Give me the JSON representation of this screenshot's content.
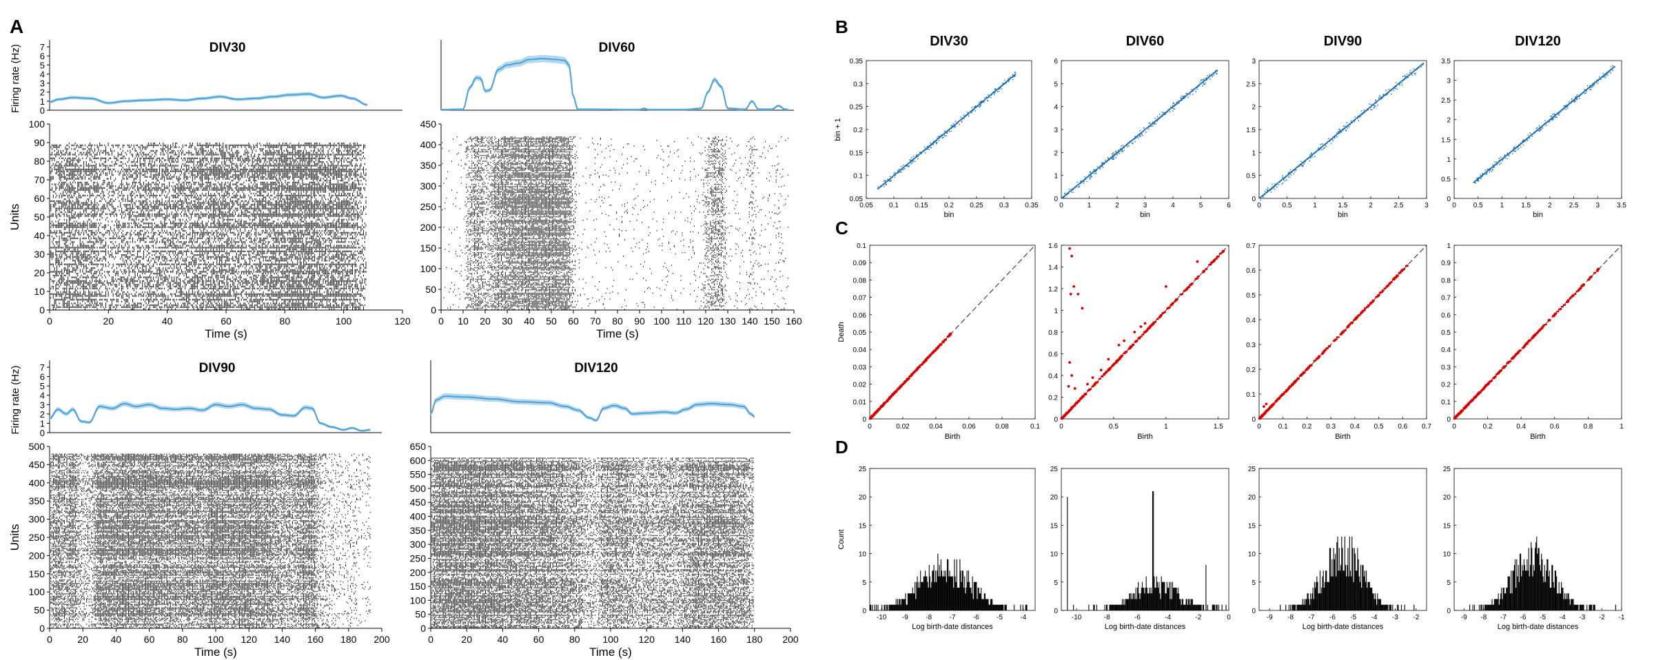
{
  "panel_letters": {
    "a": "A",
    "b": "B",
    "c": "C",
    "d": "D"
  },
  "raster_panels": [
    {
      "title": "DIV30",
      "rate_ylabel": "Firing rate (Hz)",
      "rate_ylim": [
        0,
        7
      ],
      "rate_ticks": [
        0,
        1,
        2,
        3,
        4,
        5,
        6,
        7
      ],
      "ylabel": "Units",
      "xlabel": "Time (s)",
      "xlim": [
        0,
        120
      ],
      "xticks": [
        0,
        20,
        40,
        60,
        80,
        100,
        120
      ],
      "ylim": [
        0,
        100
      ],
      "yticks": [
        0,
        10,
        20,
        30,
        40,
        50,
        60,
        70,
        80,
        90,
        100
      ],
      "n_units": 90,
      "duration": 108,
      "rate": [
        [
          0,
          0.9
        ],
        [
          3,
          1.2
        ],
        [
          8,
          1.4
        ],
        [
          14,
          1.3
        ],
        [
          20,
          0.8
        ],
        [
          26,
          1.0
        ],
        [
          32,
          1.1
        ],
        [
          40,
          1.2
        ],
        [
          46,
          1.1
        ],
        [
          52,
          1.3
        ],
        [
          58,
          1.5
        ],
        [
          64,
          1.2
        ],
        [
          70,
          1.3
        ],
        [
          76,
          1.5
        ],
        [
          82,
          1.7
        ],
        [
          88,
          1.8
        ],
        [
          93,
          1.4
        ],
        [
          99,
          1.6
        ],
        [
          103,
          1.3
        ],
        [
          108,
          0.6
        ]
      ]
    },
    {
      "title": "DIV60",
      "rate_ylim": [
        0,
        7
      ],
      "rate_ticks": [],
      "xlabel": "Time (s)",
      "xlim": [
        0,
        160
      ],
      "xticks": [
        0,
        10,
        20,
        30,
        40,
        50,
        60,
        70,
        80,
        90,
        100,
        110,
        120,
        130,
        140,
        150,
        160
      ],
      "ylim": [
        0,
        450
      ],
      "yticks": [
        0,
        50,
        100,
        150,
        200,
        250,
        300,
        350,
        400,
        450
      ],
      "n_units": 420,
      "duration": 158,
      "rate": [
        [
          0,
          0.05
        ],
        [
          10,
          0.1
        ],
        [
          13,
          2.5
        ],
        [
          16,
          3.6
        ],
        [
          18,
          3.5
        ],
        [
          20,
          2.1
        ],
        [
          22,
          2.2
        ],
        [
          26,
          4.5
        ],
        [
          30,
          5.0
        ],
        [
          35,
          5.2
        ],
        [
          40,
          5.6
        ],
        [
          46,
          5.7
        ],
        [
          52,
          5.6
        ],
        [
          56,
          5.5
        ],
        [
          58,
          5.0
        ],
        [
          60,
          1.5
        ],
        [
          62,
          0.1
        ],
        [
          90,
          0.05
        ],
        [
          92,
          0.2
        ],
        [
          94,
          0.05
        ],
        [
          110,
          0.05
        ],
        [
          118,
          0.2
        ],
        [
          121,
          2.0
        ],
        [
          124,
          3.4
        ],
        [
          127,
          2.6
        ],
        [
          130,
          0.2
        ],
        [
          138,
          0.1
        ],
        [
          141,
          1.0
        ],
        [
          144,
          0.1
        ],
        [
          150,
          0.1
        ],
        [
          153,
          0.5
        ],
        [
          156,
          0.1
        ]
      ]
    },
    {
      "title": "DIV90",
      "rate_ylabel": "Firing rate (Hz)",
      "rate_ylim": [
        0,
        7
      ],
      "rate_ticks": [
        0,
        1,
        2,
        3,
        4,
        5,
        6,
        7
      ],
      "ylabel": "Units",
      "xlabel": "Time (s)",
      "xlim": [
        0,
        200
      ],
      "xticks": [
        0,
        20,
        40,
        60,
        80,
        100,
        120,
        140,
        160,
        180,
        200
      ],
      "ylim": [
        0,
        500
      ],
      "yticks": [
        0,
        50,
        100,
        150,
        200,
        250,
        300,
        350,
        400,
        450,
        500
      ],
      "n_units": 480,
      "duration": 193,
      "rate": [
        [
          0,
          1.5
        ],
        [
          5,
          2.5
        ],
        [
          10,
          2.0
        ],
        [
          14,
          2.5
        ],
        [
          19,
          1.2
        ],
        [
          24,
          1.1
        ],
        [
          30,
          2.8
        ],
        [
          38,
          2.6
        ],
        [
          45,
          3.1
        ],
        [
          52,
          2.8
        ],
        [
          60,
          3.0
        ],
        [
          68,
          2.6
        ],
        [
          76,
          2.5
        ],
        [
          84,
          2.6
        ],
        [
          92,
          2.4
        ],
        [
          100,
          3.0
        ],
        [
          108,
          2.8
        ],
        [
          116,
          3.0
        ],
        [
          124,
          2.6
        ],
        [
          132,
          2.5
        ],
        [
          140,
          1.9
        ],
        [
          147,
          1.8
        ],
        [
          154,
          2.7
        ],
        [
          158,
          2.6
        ],
        [
          163,
          1.0
        ],
        [
          170,
          0.6
        ],
        [
          177,
          0.3
        ],
        [
          182,
          0.5
        ],
        [
          188,
          0.2
        ],
        [
          193,
          0.3
        ]
      ]
    },
    {
      "title": "DIV120",
      "rate_ylim": [
        0,
        7
      ],
      "rate_ticks": [],
      "xlabel": "Time (s)",
      "xlim": [
        0,
        200
      ],
      "xticks": [
        0,
        20,
        40,
        60,
        80,
        100,
        120,
        140,
        160,
        180,
        200
      ],
      "ylim": [
        0,
        650
      ],
      "yticks": [
        0,
        50,
        100,
        150,
        200,
        250,
        300,
        350,
        400,
        450,
        500,
        550,
        600,
        650
      ],
      "n_units": 610,
      "duration": 180,
      "rate": [
        [
          0,
          2.0
        ],
        [
          3,
          3.5
        ],
        [
          8,
          3.9
        ],
        [
          20,
          3.8
        ],
        [
          35,
          3.6
        ],
        [
          50,
          3.3
        ],
        [
          65,
          3.2
        ],
        [
          75,
          2.8
        ],
        [
          82,
          2.4
        ],
        [
          88,
          1.6
        ],
        [
          92,
          1.3
        ],
        [
          96,
          2.6
        ],
        [
          102,
          2.9
        ],
        [
          108,
          2.6
        ],
        [
          112,
          2.0
        ],
        [
          120,
          2.1
        ],
        [
          130,
          2.2
        ],
        [
          136,
          2.1
        ],
        [
          142,
          2.5
        ],
        [
          148,
          3.0
        ],
        [
          156,
          3.1
        ],
        [
          166,
          3.0
        ],
        [
          174,
          2.8
        ],
        [
          178,
          2.0
        ],
        [
          180,
          1.7
        ]
      ]
    }
  ],
  "scatter_panels": [
    {
      "title": "DIV30",
      "ylabel": "bin + 1",
      "xlabel": "bin",
      "xlim": [
        0.05,
        0.35
      ],
      "xticks": [
        "0.05",
        "0.1",
        "0.15",
        "0.2",
        "0.25",
        "0.3",
        "0.35"
      ],
      "ylim": [
        0.05,
        0.35
      ],
      "yticks": [
        "0.05",
        "0.1",
        "0.15",
        "0.2",
        "0.25",
        "0.3",
        "0.35"
      ],
      "range": [
        0.07,
        0.32
      ]
    },
    {
      "title": "DIV60",
      "xlabel": "bin",
      "xlim": [
        0,
        6
      ],
      "xticks": [
        "0",
        "1",
        "2",
        "3",
        "4",
        "5",
        "6"
      ],
      "ylim": [
        0,
        6
      ],
      "yticks": [
        "0",
        "1",
        "2",
        "3",
        "4",
        "5",
        "6"
      ],
      "range": [
        0,
        5.6
      ]
    },
    {
      "title": "DIV90",
      "xlabel": "bin",
      "xlim": [
        0,
        3
      ],
      "xticks": [
        "0",
        "0.5",
        "1",
        "1.5",
        "2",
        "2.5",
        "3"
      ],
      "ylim": [
        0,
        3
      ],
      "yticks": [
        "0",
        "0.5",
        "1",
        "1.5",
        "2",
        "2.5",
        "3"
      ],
      "range": [
        0,
        2.95
      ]
    },
    {
      "title": "DIV120",
      "xlabel": "bin",
      "xlim": [
        0,
        3.5
      ],
      "xticks": [
        "0",
        "0.5",
        "1",
        "1.5",
        "2",
        "2.5",
        "3",
        "3.5"
      ],
      "ylim": [
        0,
        3.5
      ],
      "yticks": [
        "0",
        "0.5",
        "1",
        "1.5",
        "2",
        "2.5",
        "3",
        "3.5"
      ],
      "range": [
        0.4,
        3.35
      ]
    }
  ],
  "persistence_panels": [
    {
      "ylabel": "Death",
      "xlabel": "Birth",
      "xlim": [
        0,
        0.1
      ],
      "xticks": [
        "0",
        "0.02",
        "0.04",
        "0.06",
        "0.08",
        "0.1"
      ],
      "ylim": [
        0,
        0.1
      ],
      "yticks": [
        "0",
        "0.01",
        "0.02",
        "0.03",
        "0.04",
        "0.05",
        "0.06",
        "0.07",
        "0.08",
        "0.09",
        "0.1"
      ],
      "range": [
        0,
        0.05
      ],
      "outliers": []
    },
    {
      "xlabel": "Birth",
      "xlim": [
        0,
        1.6
      ],
      "xticks": [
        "0",
        "0.5",
        "1",
        "1.5"
      ],
      "ylim": [
        0,
        1.6
      ],
      "yticks": [
        "0",
        "0.2",
        "0.4",
        "0.6",
        "0.8",
        "1",
        "1.2",
        "1.4",
        "1.6"
      ],
      "range": [
        0,
        1.55
      ],
      "outliers": [
        [
          0.08,
          1.57
        ],
        [
          0.1,
          1.5
        ],
        [
          0.12,
          1.22
        ],
        [
          0.09,
          1.15
        ],
        [
          0.16,
          1.15
        ],
        [
          0.2,
          1.02
        ],
        [
          0.08,
          0.52
        ],
        [
          0.1,
          0.4
        ],
        [
          0.13,
          0.28
        ],
        [
          0.07,
          0.3
        ],
        [
          0.55,
          0.68
        ],
        [
          0.6,
          0.72
        ],
        [
          0.7,
          0.8
        ],
        [
          0.76,
          0.85
        ],
        [
          0.8,
          0.88
        ],
        [
          0.45,
          0.55
        ],
        [
          0.38,
          0.45
        ],
        [
          1.0,
          1.22
        ],
        [
          1.3,
          1.45
        ],
        [
          0.3,
          0.38
        ],
        [
          0.25,
          0.32
        ]
      ]
    },
    {
      "xlabel": "Birth",
      "xlim": [
        0,
        0.7
      ],
      "xticks": [
        "0",
        "0.1",
        "0.2",
        "0.3",
        "0.4",
        "0.5",
        "0.6",
        "0.7"
      ],
      "ylim": [
        0,
        0.7
      ],
      "yticks": [
        "0",
        "0.1",
        "0.2",
        "0.3",
        "0.4",
        "0.5",
        "0.6",
        "0.7"
      ],
      "range": [
        0,
        0.62
      ],
      "outliers": [
        [
          0.03,
          0.06
        ],
        [
          0.02,
          0.05
        ]
      ]
    },
    {
      "xlabel": "Birth",
      "xlim": [
        0,
        1
      ],
      "xticks": [
        "0",
        "0.2",
        "0.4",
        "0.6",
        "0.8",
        "1"
      ],
      "ylim": [
        0,
        1
      ],
      "yticks": [
        "0",
        "0.1",
        "0.2",
        "0.3",
        "0.4",
        "0.5",
        "0.6",
        "0.7",
        "0.8",
        "0.9",
        "1"
      ],
      "range": [
        0,
        0.86
      ],
      "outliers": []
    }
  ],
  "hist_panels": [
    {
      "ylabel": "Count",
      "xlabel": "Log birth-date distances",
      "xlim": [
        -10.5,
        -3.5
      ],
      "xticks": [
        -10,
        -9,
        -8,
        -7,
        -6,
        -5,
        -4
      ],
      "ylim": [
        0,
        25
      ],
      "yticks": [
        0,
        5,
        10,
        15,
        20,
        25
      ],
      "center": -7.3,
      "spread": 1.1,
      "peak": 8,
      "spike_x": null,
      "spike_h": 0,
      "extra": [
        [
          -3.9,
          1
        ]
      ]
    },
    {
      "xlabel": "Log birth-date distances",
      "xlim": [
        -11,
        0
      ],
      "xticks": [
        -10,
        -8,
        -6,
        -4,
        -2,
        0
      ],
      "ylim": [
        0,
        25
      ],
      "yticks": [
        0,
        5,
        10,
        15,
        20,
        25
      ],
      "center": -4.8,
      "spread": 1.5,
      "peak": 5,
      "spike_x": -5.0,
      "spike_h": 21,
      "extra": [
        [
          -10.6,
          20
        ],
        [
          -1.5,
          8
        ],
        [
          -10.2,
          1
        ]
      ]
    },
    {
      "xlabel": "Log birth-date distances",
      "xlim": [
        -9.5,
        -1.5
      ],
      "xticks": [
        -9,
        -8,
        -7,
        -6,
        -5,
        -4,
        -3,
        -2
      ],
      "ylim": [
        0,
        25
      ],
      "yticks": [
        0,
        5,
        10,
        15,
        20,
        25
      ],
      "center": -5.5,
      "spread": 0.95,
      "peak": 11,
      "spike_x": null,
      "spike_h": 0,
      "extra": [
        [
          -2.1,
          1
        ]
      ]
    },
    {
      "xlabel": "Log birth-date distances",
      "xlim": [
        -9.5,
        -1
      ],
      "xticks": [
        -9,
        -8,
        -7,
        -6,
        -5,
        -4,
        -3,
        -2,
        -1
      ],
      "ylim": [
        0,
        25
      ],
      "yticks": [
        0,
        5,
        10,
        15,
        20,
        25
      ],
      "center": -5.5,
      "spread": 1.05,
      "peak": 10,
      "spike_x": null,
      "spike_h": 0,
      "extra": [
        [
          -1.3,
          1
        ]
      ]
    }
  ],
  "colors": {
    "rate_line": "#4a9fd4",
    "rate_band": "#b4d8ef",
    "scatter": "#1f6fb4",
    "persistence": "#d40000",
    "diagonal": "#222222",
    "spikes": "#000000"
  }
}
